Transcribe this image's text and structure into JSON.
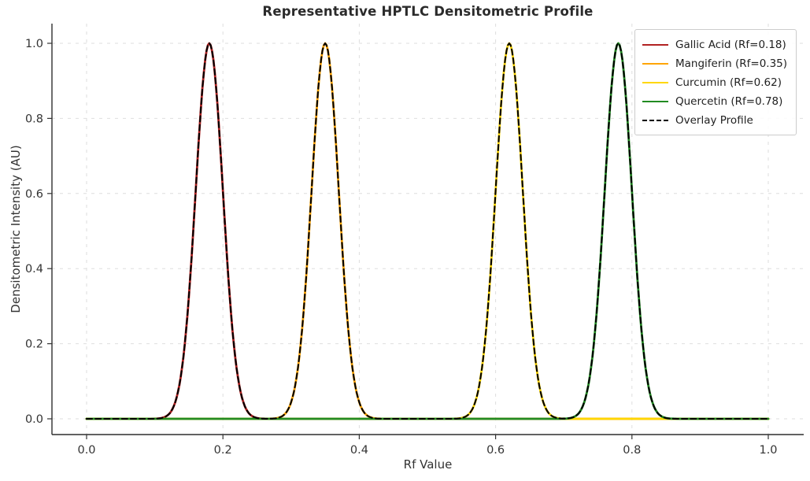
{
  "chart_data": {
    "type": "line",
    "title": "Representative HPTLC Densitometric Profile",
    "xlabel": "Rf Value",
    "ylabel": "Densitometric Intensity (AU)",
    "x_range": [
      0.0,
      1.0
    ],
    "xlim": [
      -0.05,
      1.05
    ],
    "ylim": [
      -0.042,
      1.052
    ],
    "xticks": [
      0.0,
      0.2,
      0.4,
      0.6,
      0.8,
      1.0
    ],
    "yticks": [
      0.0,
      0.2,
      0.4,
      0.6,
      0.8,
      1.0
    ],
    "grid": true,
    "grid_style": "dashed",
    "legend_position": "upper right",
    "series": [
      {
        "name": "Gallic Acid (Rf=0.18)",
        "compound": "Gallic Acid",
        "color": "#B22222",
        "line_style": "solid",
        "curve": "gaussian",
        "peak_rf": 0.18,
        "amplitude": 1.0,
        "sigma": 0.02
      },
      {
        "name": "Mangiferin (Rf=0.35)",
        "compound": "Mangiferin",
        "color": "#FFA500",
        "line_style": "solid",
        "curve": "gaussian",
        "peak_rf": 0.35,
        "amplitude": 1.0,
        "sigma": 0.02
      },
      {
        "name": "Curcumin (Rf=0.62)",
        "compound": "Curcumin",
        "color": "#FFD700",
        "line_style": "solid",
        "curve": "gaussian",
        "peak_rf": 0.62,
        "amplitude": 1.0,
        "sigma": 0.02
      },
      {
        "name": "Quercetin (Rf=0.78)",
        "compound": "Quercetin",
        "color": "#228B22",
        "line_style": "solid",
        "curve": "gaussian",
        "peak_rf": 0.78,
        "amplitude": 1.0,
        "sigma": 0.02
      },
      {
        "name": "Overlay Profile",
        "color": "#000000",
        "line_style": "dashed",
        "curve": "sum_of_gaussians"
      }
    ]
  }
}
